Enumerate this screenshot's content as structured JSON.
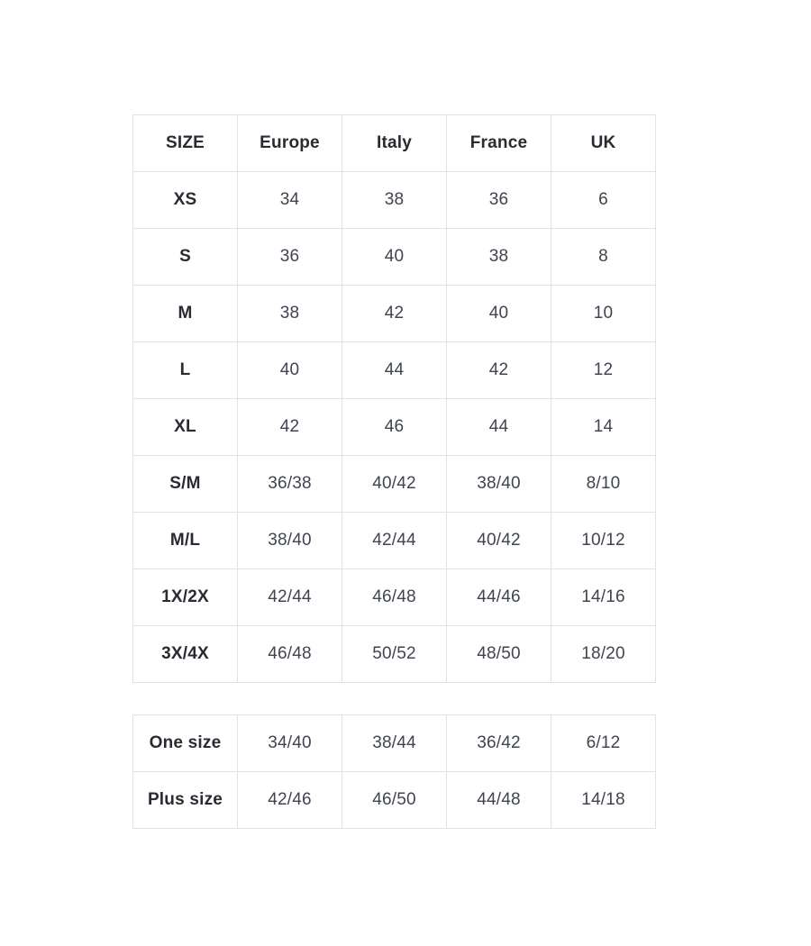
{
  "colors": {
    "page_background": "#ffffff",
    "table_border": "#e2e2e2",
    "header_text": "#2a2a33",
    "value_text": "#3f4450"
  },
  "table1": {
    "headers": [
      "SIZE",
      "Europe",
      "Italy",
      "France",
      "UK"
    ],
    "rows": [
      {
        "label": "XS",
        "values": [
          "34",
          "38",
          "36",
          "6"
        ]
      },
      {
        "label": "S",
        "values": [
          "36",
          "40",
          "38",
          "8"
        ]
      },
      {
        "label": "M",
        "values": [
          "38",
          "42",
          "40",
          "10"
        ]
      },
      {
        "label": "L",
        "values": [
          "40",
          "44",
          "42",
          "12"
        ]
      },
      {
        "label": "XL",
        "values": [
          "42",
          "46",
          "44",
          "14"
        ]
      },
      {
        "label": "S/M",
        "values": [
          "36/38",
          "40/42",
          "38/40",
          "8/10"
        ]
      },
      {
        "label": "M/L",
        "values": [
          "38/40",
          "42/44",
          "40/42",
          "10/12"
        ]
      },
      {
        "label": "1X/2X",
        "values": [
          "42/44",
          "46/48",
          "44/46",
          "14/16"
        ]
      },
      {
        "label": "3X/4X",
        "values": [
          "46/48",
          "50/52",
          "48/50",
          "18/20"
        ]
      }
    ]
  },
  "table2": {
    "rows": [
      {
        "label": "One size",
        "values": [
          "34/40",
          "38/44",
          "36/42",
          "6/12"
        ]
      },
      {
        "label": "Plus size",
        "values": [
          "42/46",
          "46/50",
          "44/48",
          "14/18"
        ]
      }
    ]
  }
}
